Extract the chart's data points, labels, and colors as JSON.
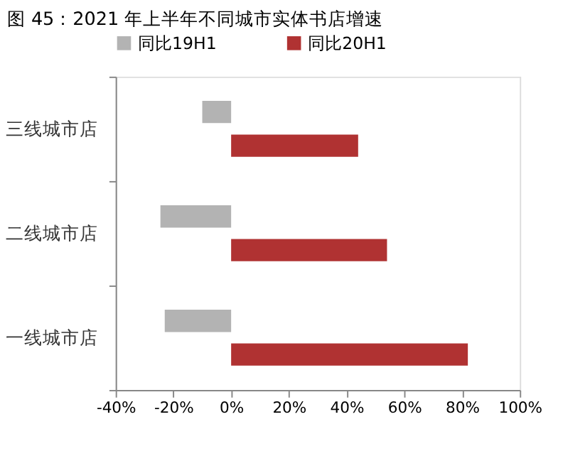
{
  "chart_data": {
    "type": "bar",
    "orientation": "horizontal",
    "title": "图 45：2021 年上半年不同城市实体书店增速",
    "categories": [
      "三线城市店",
      "二线城市店",
      "一线城市店"
    ],
    "series": [
      {
        "name": "同比19H1",
        "color": "#b3b3b3",
        "values": [
          -10,
          -24.5,
          -23
        ]
      },
      {
        "name": "同比20H1",
        "color": "#b03232",
        "values": [
          44,
          54,
          82
        ]
      }
    ],
    "xlim": [
      -40,
      100
    ],
    "xticks": [
      {
        "value": -40,
        "label": "-40%"
      },
      {
        "value": -20,
        "label": "-20%"
      },
      {
        "value": 0,
        "label": "0%"
      },
      {
        "value": 20,
        "label": "20%"
      },
      {
        "value": 40,
        "label": "40%"
      },
      {
        "value": 60,
        "label": "60%"
      },
      {
        "value": 80,
        "label": "80%"
      },
      {
        "value": 100,
        "label": "100%"
      }
    ],
    "grid": false,
    "legend": "top"
  }
}
